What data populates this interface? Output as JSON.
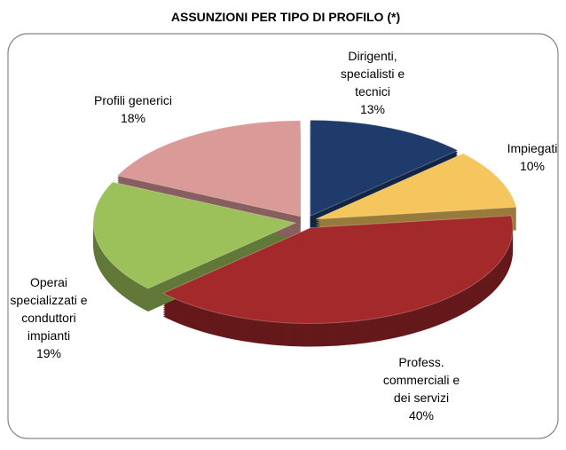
{
  "chart_data": {
    "type": "pie3d",
    "title": "ASSUNZIONI PER TIPO DI PROFILO (*)",
    "categories": [
      "Dirigenti,\nspecialisti e\ntecnici",
      "Impiegati",
      "Profess.\ncommerciali e\ndei servizi",
      "Operai\nspecializzati e\nconduttori\nimpianti",
      "Profili generici"
    ],
    "values": [
      13,
      10,
      40,
      19,
      18
    ],
    "value_labels": [
      "13%",
      "10%",
      "40%",
      "19%",
      "18%"
    ],
    "colors": [
      "#1f3b6b",
      "#f5c65e",
      "#a3292a",
      "#9cc15a",
      "#d99a98"
    ]
  }
}
